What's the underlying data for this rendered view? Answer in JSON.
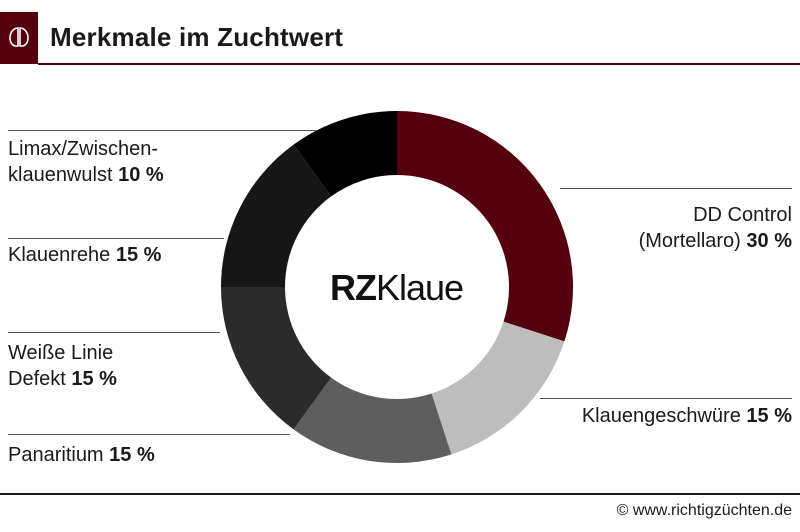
{
  "header": {
    "title": "Merkmale im Zuchtwert",
    "icon": "hoof-icon",
    "accent_color": "#54000f"
  },
  "center_logo": {
    "bold": "RZ",
    "regular": "Klaue"
  },
  "footer": {
    "credit": "© www.richtigzüchten.de"
  },
  "chart_data": {
    "type": "pie",
    "donut": true,
    "categories": [
      "DD Control (Mortellaro)",
      "Klauengeschwüre",
      "Panaritium",
      "Weiße Linie Defekt",
      "Klauenrehe",
      "Limax/Zwischenklauenwulst"
    ],
    "values": [
      30,
      15,
      15,
      15,
      15,
      10
    ],
    "unit": "%",
    "colors": [
      "#54000f",
      "#bdbdbd",
      "#5e5e5e",
      "#2b2b2b",
      "#161616",
      "#000000"
    ],
    "labels": [
      {
        "line1": "DD Control",
        "line2": "(Mortellaro)",
        "pct": "30 %"
      },
      {
        "line1": "",
        "line2": "Klauengeschwüre",
        "pct": "15 %"
      },
      {
        "line1": "",
        "line2": "Panaritium",
        "pct": "15 %"
      },
      {
        "line1": "Weiße Linie",
        "line2": "Defekt",
        "pct": "15 %"
      },
      {
        "line1": "",
        "line2": "Klauenrehe",
        "pct": "15 %"
      },
      {
        "line1": "Limax/Zwischen-",
        "line2": "klauenwulst",
        "pct": "10 %"
      }
    ]
  }
}
